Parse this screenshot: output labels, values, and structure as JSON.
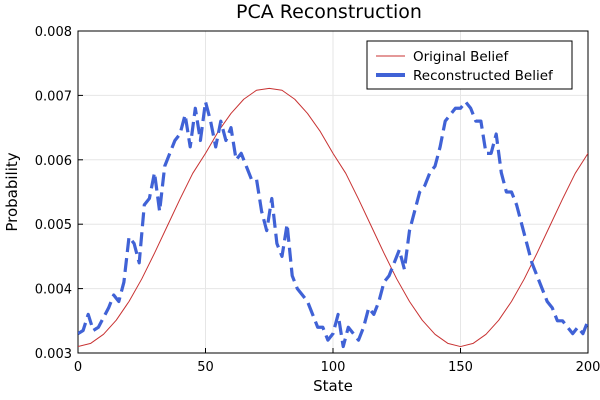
{
  "chart_data": {
    "type": "line",
    "title": "PCA Reconstruction",
    "xlabel": "State",
    "ylabel": "Probability",
    "xlim": [
      0,
      200
    ],
    "ylim": [
      0.003,
      0.008
    ],
    "xticks": [
      0,
      50,
      100,
      150,
      200
    ],
    "yticks": [
      0.003,
      0.004,
      0.005,
      0.006,
      0.007,
      0.008
    ],
    "xtick_labels": [
      "0",
      "50",
      "100",
      "150",
      "200"
    ],
    "ytick_labels": [
      "0.003",
      "0.004",
      "0.005",
      "0.006",
      "0.007",
      "0.008"
    ],
    "grid": true,
    "legend_position": "top-right",
    "series": [
      {
        "name": "Original Belief",
        "color": "#c83232",
        "style": "solid",
        "x": [
          0,
          5,
          10,
          15,
          20,
          25,
          30,
          35,
          40,
          45,
          50,
          55,
          60,
          65,
          70,
          75,
          80,
          85,
          90,
          95,
          100,
          105,
          110,
          115,
          120,
          125,
          130,
          135,
          140,
          145,
          150,
          155,
          160,
          165,
          170,
          175,
          180,
          185,
          190,
          195,
          200
        ],
        "values": [
          0.0031,
          0.00315,
          0.00329,
          0.00351,
          0.0038,
          0.00415,
          0.00455,
          0.00497,
          0.00539,
          0.00579,
          0.0061,
          0.00644,
          0.00672,
          0.00694,
          0.00708,
          0.00711,
          0.00708,
          0.00694,
          0.00672,
          0.00644,
          0.0061,
          0.00579,
          0.00539,
          0.00497,
          0.00455,
          0.00415,
          0.0038,
          0.00351,
          0.00329,
          0.00315,
          0.0031,
          0.00315,
          0.00329,
          0.00351,
          0.0038,
          0.00415,
          0.00455,
          0.00497,
          0.00539,
          0.00579,
          0.0061
        ]
      },
      {
        "name": "Reconstructed Belief",
        "color": "#4062d6",
        "style": "dashed",
        "x": [
          0,
          2,
          4,
          6,
          8,
          10,
          12,
          14,
          16,
          18,
          20,
          22,
          24,
          26,
          28,
          30,
          32,
          34,
          36,
          38,
          40,
          42,
          44,
          46,
          48,
          50,
          52,
          54,
          56,
          58,
          60,
          62,
          64,
          66,
          68,
          70,
          72,
          74,
          76,
          78,
          80,
          82,
          84,
          86,
          88,
          90,
          92,
          94,
          96,
          98,
          100,
          102,
          104,
          106,
          108,
          110,
          112,
          114,
          116,
          118,
          120,
          122,
          124,
          126,
          128,
          130,
          132,
          134,
          136,
          138,
          140,
          142,
          144,
          146,
          148,
          150,
          152,
          154,
          156,
          158,
          160,
          162,
          164,
          166,
          168,
          170,
          172,
          174,
          176,
          178,
          180,
          182,
          184,
          186,
          188,
          190,
          192,
          194,
          196,
          198,
          200
        ],
        "values": [
          0.0033,
          0.00335,
          0.0036,
          0.00335,
          0.0034,
          0.00355,
          0.0037,
          0.0039,
          0.0038,
          0.0041,
          0.0048,
          0.0047,
          0.0044,
          0.0053,
          0.0054,
          0.0058,
          0.0052,
          0.0059,
          0.0061,
          0.0063,
          0.0064,
          0.0067,
          0.0062,
          0.0068,
          0.0063,
          0.0069,
          0.0066,
          0.0062,
          0.0066,
          0.0063,
          0.0065,
          0.006,
          0.0061,
          0.0059,
          0.0057,
          0.0057,
          0.0052,
          0.0049,
          0.0054,
          0.0047,
          0.0045,
          0.005,
          0.0042,
          0.004,
          0.0039,
          0.0038,
          0.0036,
          0.0034,
          0.0034,
          0.0032,
          0.0033,
          0.0036,
          0.0031,
          0.0034,
          0.0033,
          0.0032,
          0.0034,
          0.0037,
          0.0036,
          0.0038,
          0.0041,
          0.0042,
          0.0044,
          0.0046,
          0.0043,
          0.0049,
          0.0052,
          0.0055,
          0.0056,
          0.0058,
          0.0059,
          0.0062,
          0.0066,
          0.0067,
          0.0068,
          0.0068,
          0.0069,
          0.0068,
          0.0066,
          0.0066,
          0.0061,
          0.0061,
          0.0064,
          0.0058,
          0.0055,
          0.0055,
          0.0053,
          0.005,
          0.0047,
          0.0044,
          0.0042,
          0.004,
          0.0038,
          0.0037,
          0.0035,
          0.0035,
          0.0034,
          0.0033,
          0.0034,
          0.0033,
          0.0035
        ]
      }
    ]
  }
}
